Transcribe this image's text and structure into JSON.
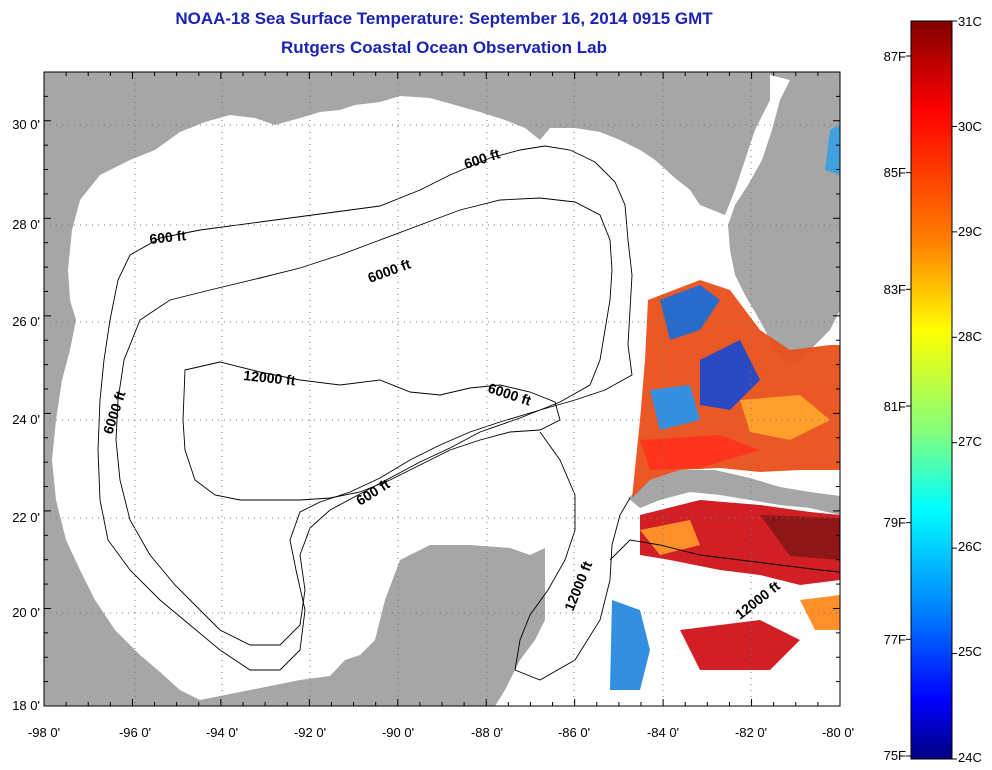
{
  "title": "NOAA-18 Sea Surface Temperature:  September 16, 2014 0915 GMT",
  "subtitle": "Rutgers Coastal Ocean Observation Lab",
  "map": {
    "lon_ticks": [
      "-98 0'",
      "-96 0'",
      "-94 0'",
      "-92 0'",
      "-90 0'",
      "-88 0'",
      "-86 0'",
      "-84 0'",
      "-82 0'",
      "-80 0'"
    ],
    "lat_ticks": [
      "30 0'",
      "28 0'",
      "26 0'",
      "24 0'",
      "22 0'",
      "20 0'",
      "18 0'"
    ],
    "contour_labels": [
      "600 ft",
      "600 ft",
      "600 ft",
      "6000 ft",
      "6000 ft",
      "6000 ft",
      "12000 ft",
      "12000 ft",
      "12000 ft"
    ]
  },
  "colorbar": {
    "celsius": [
      "31C",
      "30C",
      "29C",
      "28C",
      "27C",
      "26C",
      "25C",
      "24C"
    ],
    "fahrenheit": [
      "87F",
      "85F",
      "83F",
      "81F",
      "79F",
      "77F",
      "75F"
    ],
    "colors": [
      "#800000",
      "#ff0000",
      "#ff8000",
      "#ffff00",
      "#80ff80",
      "#00ffff",
      "#0080ff",
      "#0000ff",
      "#000080"
    ]
  },
  "colors": {
    "land": "#a6a6a6",
    "title": "#1a23b4"
  }
}
